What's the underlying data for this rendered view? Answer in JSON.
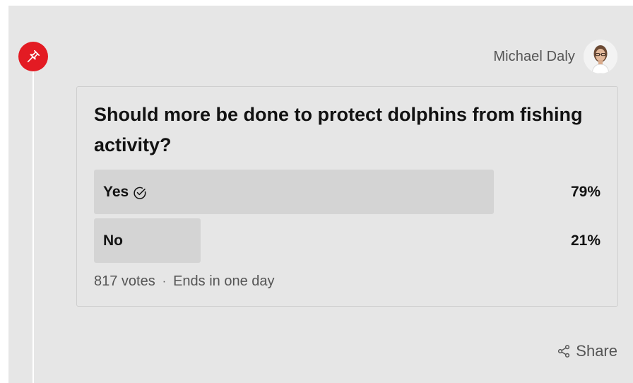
{
  "author": {
    "name": "Michael Daly",
    "avatar_icon": "person-portrait-icon"
  },
  "pin": {
    "icon": "pin-icon",
    "color": "#e31b23"
  },
  "poll": {
    "question": "Should more be done to protect dolphins from fishing activity?",
    "options": [
      {
        "label": "Yes",
        "percent_text": "79%",
        "percent": 79,
        "selected": true,
        "selected_icon": "check-circle-icon"
      },
      {
        "label": "No",
        "percent_text": "21%",
        "percent": 21,
        "selected": false
      }
    ],
    "votes": "817 votes",
    "separator": "·",
    "ends": "Ends in one day"
  },
  "share": {
    "label": "Share",
    "icon": "share-icon"
  },
  "colors": {
    "panel_bg": "#e6e6e6",
    "bar_fill": "#d4d4d4",
    "text_primary": "#121212",
    "text_secondary": "#555555"
  }
}
